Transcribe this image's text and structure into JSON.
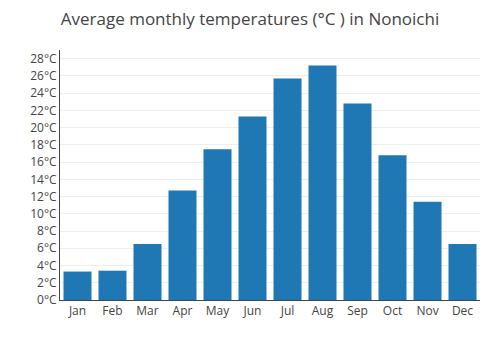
{
  "chart_data": {
    "type": "bar",
    "title": "Average monthly temperatures (°C ) in Nonoichi",
    "categories": [
      "Jan",
      "Feb",
      "Mar",
      "Apr",
      "May",
      "Jun",
      "Jul",
      "Aug",
      "Sep",
      "Oct",
      "Nov",
      "Dec"
    ],
    "values": [
      3.3,
      3.4,
      6.5,
      12.7,
      17.5,
      21.3,
      25.7,
      27.2,
      22.8,
      16.8,
      11.4,
      6.5
    ],
    "ylim": [
      0,
      29
    ],
    "yticks": [
      {
        "value": 0,
        "label": "0°C"
      },
      {
        "value": 2,
        "label": "2°C"
      },
      {
        "value": 4,
        "label": "4°C"
      },
      {
        "value": 6,
        "label": "6°C"
      },
      {
        "value": 8,
        "label": "8°C"
      },
      {
        "value": 10,
        "label": "10°C"
      },
      {
        "value": 12,
        "label": "12°C"
      },
      {
        "value": 14,
        "label": "14°C"
      },
      {
        "value": 16,
        "label": "16°C"
      },
      {
        "value": 18,
        "label": "18°C"
      },
      {
        "value": 20,
        "label": "20°C"
      },
      {
        "value": 22,
        "label": "22°C"
      },
      {
        "value": 24,
        "label": "24°C"
      },
      {
        "value": 26,
        "label": "26°C"
      },
      {
        "value": 28,
        "label": "28°C"
      }
    ],
    "grid": true
  }
}
